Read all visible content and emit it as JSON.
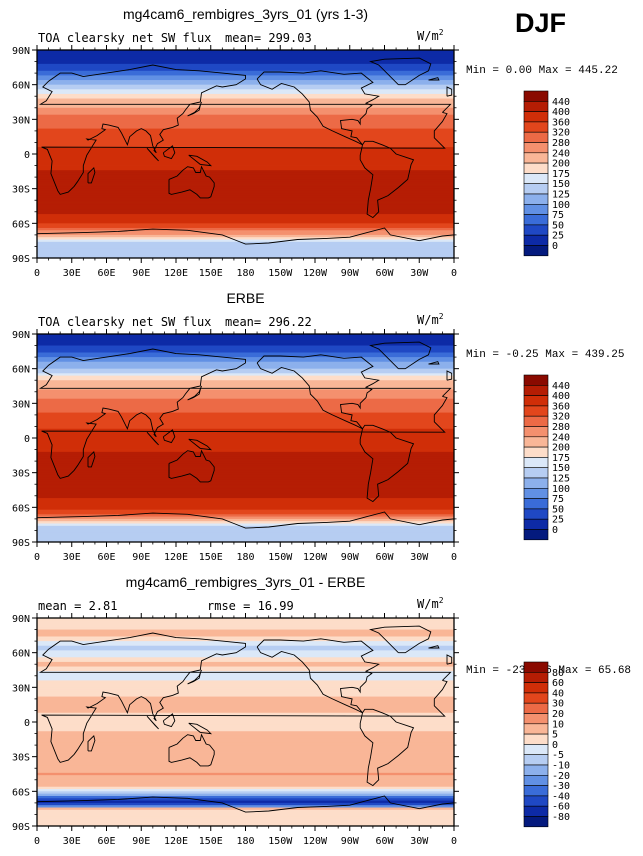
{
  "season": "DJF",
  "panels": [
    {
      "title": "mg4cam6_rembigres_3yrs_01 (yrs 1-3)",
      "subtitle": "TOA clearsky net SW flux",
      "stat_left": "mean= 299.03",
      "stat_right": "",
      "units": "W/m",
      "units_sup": "2",
      "minmax": "Min =   0.00 Max = 445.22"
    },
    {
      "title": "ERBE",
      "subtitle": "TOA clearsky net SW flux",
      "stat_left": "mean= 296.22",
      "stat_right": "",
      "units": "W/m",
      "units_sup": "2",
      "minmax": "Min = -0.25 Max = 439.25"
    },
    {
      "title": "mg4cam6_rembigres_3yrs_01 - ERBE",
      "subtitle": "",
      "stat_left": "mean =   2.81",
      "stat_right": "rmse =  16.99",
      "units": "W/m",
      "units_sup": "2",
      "minmax": "Min = -234.96 Max =  65.68"
    }
  ],
  "chart_data": [
    {
      "type": "heatmap",
      "title": "mg4cam6_rembigres_3yrs_01 (yrs 1-3)",
      "subtitle": "TOA clearsky net SW flux",
      "units": "W/m2",
      "mean": 299.03,
      "min": 0.0,
      "max": 445.22,
      "x_ticks": [
        "0",
        "30E",
        "60E",
        "90E",
        "120E",
        "150E",
        "180",
        "150W",
        "120W",
        "90W",
        "60W",
        "30W",
        "0"
      ],
      "y_ticks": [
        "90N",
        "60N",
        "30N",
        "0",
        "30S",
        "60S",
        "90S"
      ],
      "colorbar_levels": [
        "440",
        "400",
        "360",
        "320",
        "280",
        "240",
        "200",
        "175",
        "150",
        "125",
        "100",
        "75",
        "50",
        "25",
        "0"
      ],
      "colorbar_colors": [
        "#8a0a00",
        "#b51d04",
        "#d02e08",
        "#e2461c",
        "#ec6a46",
        "#f4906e",
        "#f9b697",
        "#fdddc9",
        "#dbe8f8",
        "#b6cdf2",
        "#8cb0ec",
        "#6190e4",
        "#3a6cd8",
        "#1f48c4",
        "#0d2aa6",
        "#041a7e"
      ],
      "zonal_bands": [
        {
          "lat": 90,
          "value": 0
        },
        {
          "lat": 80,
          "value": 20
        },
        {
          "lat": 70,
          "value": 60
        },
        {
          "lat": 60,
          "value": 120
        },
        {
          "lat": 50,
          "value": 185
        },
        {
          "lat": 40,
          "value": 245
        },
        {
          "lat": 30,
          "value": 300
        },
        {
          "lat": 15,
          "value": 335
        },
        {
          "lat": 0,
          "value": 375
        },
        {
          "lat": -15,
          "value": 400
        },
        {
          "lat": -30,
          "value": 425
        },
        {
          "lat": -40,
          "value": 435
        },
        {
          "lat": -50,
          "value": 410
        },
        {
          "lat": -60,
          "value": 360
        },
        {
          "lat": -68,
          "value": 260
        },
        {
          "lat": -75,
          "value": 150
        },
        {
          "lat": -90,
          "value": 140
        }
      ]
    },
    {
      "type": "heatmap",
      "title": "ERBE",
      "subtitle": "TOA clearsky net SW flux",
      "units": "W/m2",
      "mean": 296.22,
      "min": -0.25,
      "max": 439.25,
      "x_ticks": [
        "0",
        "30E",
        "60E",
        "90E",
        "120E",
        "150E",
        "180",
        "150W",
        "120W",
        "90W",
        "60W",
        "30W",
        "0"
      ],
      "y_ticks": [
        "90N",
        "60N",
        "30N",
        "0",
        "30S",
        "60S",
        "90S"
      ],
      "colorbar_levels": [
        "440",
        "400",
        "360",
        "320",
        "280",
        "240",
        "200",
        "175",
        "150",
        "125",
        "100",
        "75",
        "50",
        "25",
        "0"
      ],
      "colorbar_colors": [
        "#8a0a00",
        "#b51d04",
        "#d02e08",
        "#e2461c",
        "#ec6a46",
        "#f4906e",
        "#f9b697",
        "#fdddc9",
        "#dbe8f8",
        "#b6cdf2",
        "#8cb0ec",
        "#6190e4",
        "#3a6cd8",
        "#1f48c4",
        "#0d2aa6",
        "#041a7e"
      ],
      "zonal_bands": [
        {
          "lat": 90,
          "value": 0
        },
        {
          "lat": 80,
          "value": 20
        },
        {
          "lat": 70,
          "value": 70
        },
        {
          "lat": 60,
          "value": 130
        },
        {
          "lat": 50,
          "value": 195
        },
        {
          "lat": 40,
          "value": 250
        },
        {
          "lat": 30,
          "value": 300
        },
        {
          "lat": 15,
          "value": 340
        },
        {
          "lat": 0,
          "value": 380
        },
        {
          "lat": -15,
          "value": 405
        },
        {
          "lat": -30,
          "value": 420
        },
        {
          "lat": -40,
          "value": 425
        },
        {
          "lat": -50,
          "value": 405
        },
        {
          "lat": -60,
          "value": 370
        },
        {
          "lat": -68,
          "value": 300
        },
        {
          "lat": -75,
          "value": 150
        },
        {
          "lat": -90,
          "value": 140
        }
      ]
    },
    {
      "type": "heatmap",
      "title": "mg4cam6_rembigres_3yrs_01 - ERBE",
      "units": "W/m2",
      "mean": 2.81,
      "rmse": 16.99,
      "min": -234.96,
      "max": 65.68,
      "x_ticks": [
        "0",
        "30E",
        "60E",
        "90E",
        "120E",
        "150E",
        "180",
        "150W",
        "120W",
        "90W",
        "60W",
        "30W",
        "0"
      ],
      "y_ticks": [
        "90N",
        "60N",
        "30N",
        "0",
        "30S",
        "60S",
        "90S"
      ],
      "colorbar_levels": [
        "80",
        "60",
        "40",
        "30",
        "20",
        "10",
        "5",
        "0",
        "-5",
        "-10",
        "-20",
        "-30",
        "-40",
        "-60",
        "-80"
      ],
      "colorbar_colors": [
        "#8a0a00",
        "#b51d04",
        "#d02e08",
        "#e2461c",
        "#ec6a46",
        "#f4906e",
        "#f9b697",
        "#fdddc9",
        "#dbe8f8",
        "#b6cdf2",
        "#8cb0ec",
        "#6190e4",
        "#3a6cd8",
        "#1f48c4",
        "#0d2aa6",
        "#041a7e"
      ],
      "zonal_bands": [
        {
          "lat": 90,
          "value": 3
        },
        {
          "lat": 75,
          "value": 6
        },
        {
          "lat": 65,
          "value": -7
        },
        {
          "lat": 50,
          "value": 6
        },
        {
          "lat": 40,
          "value": -4
        },
        {
          "lat": 30,
          "value": 4
        },
        {
          "lat": 15,
          "value": 6
        },
        {
          "lat": 0,
          "value": 4
        },
        {
          "lat": -15,
          "value": 6
        },
        {
          "lat": -30,
          "value": 7
        },
        {
          "lat": -45,
          "value": 10
        },
        {
          "lat": -55,
          "value": 6
        },
        {
          "lat": -62,
          "value": -8
        },
        {
          "lat": -66,
          "value": -45
        },
        {
          "lat": -70,
          "value": -70
        },
        {
          "lat": -75,
          "value": 5
        },
        {
          "lat": -90,
          "value": 3
        }
      ]
    }
  ]
}
